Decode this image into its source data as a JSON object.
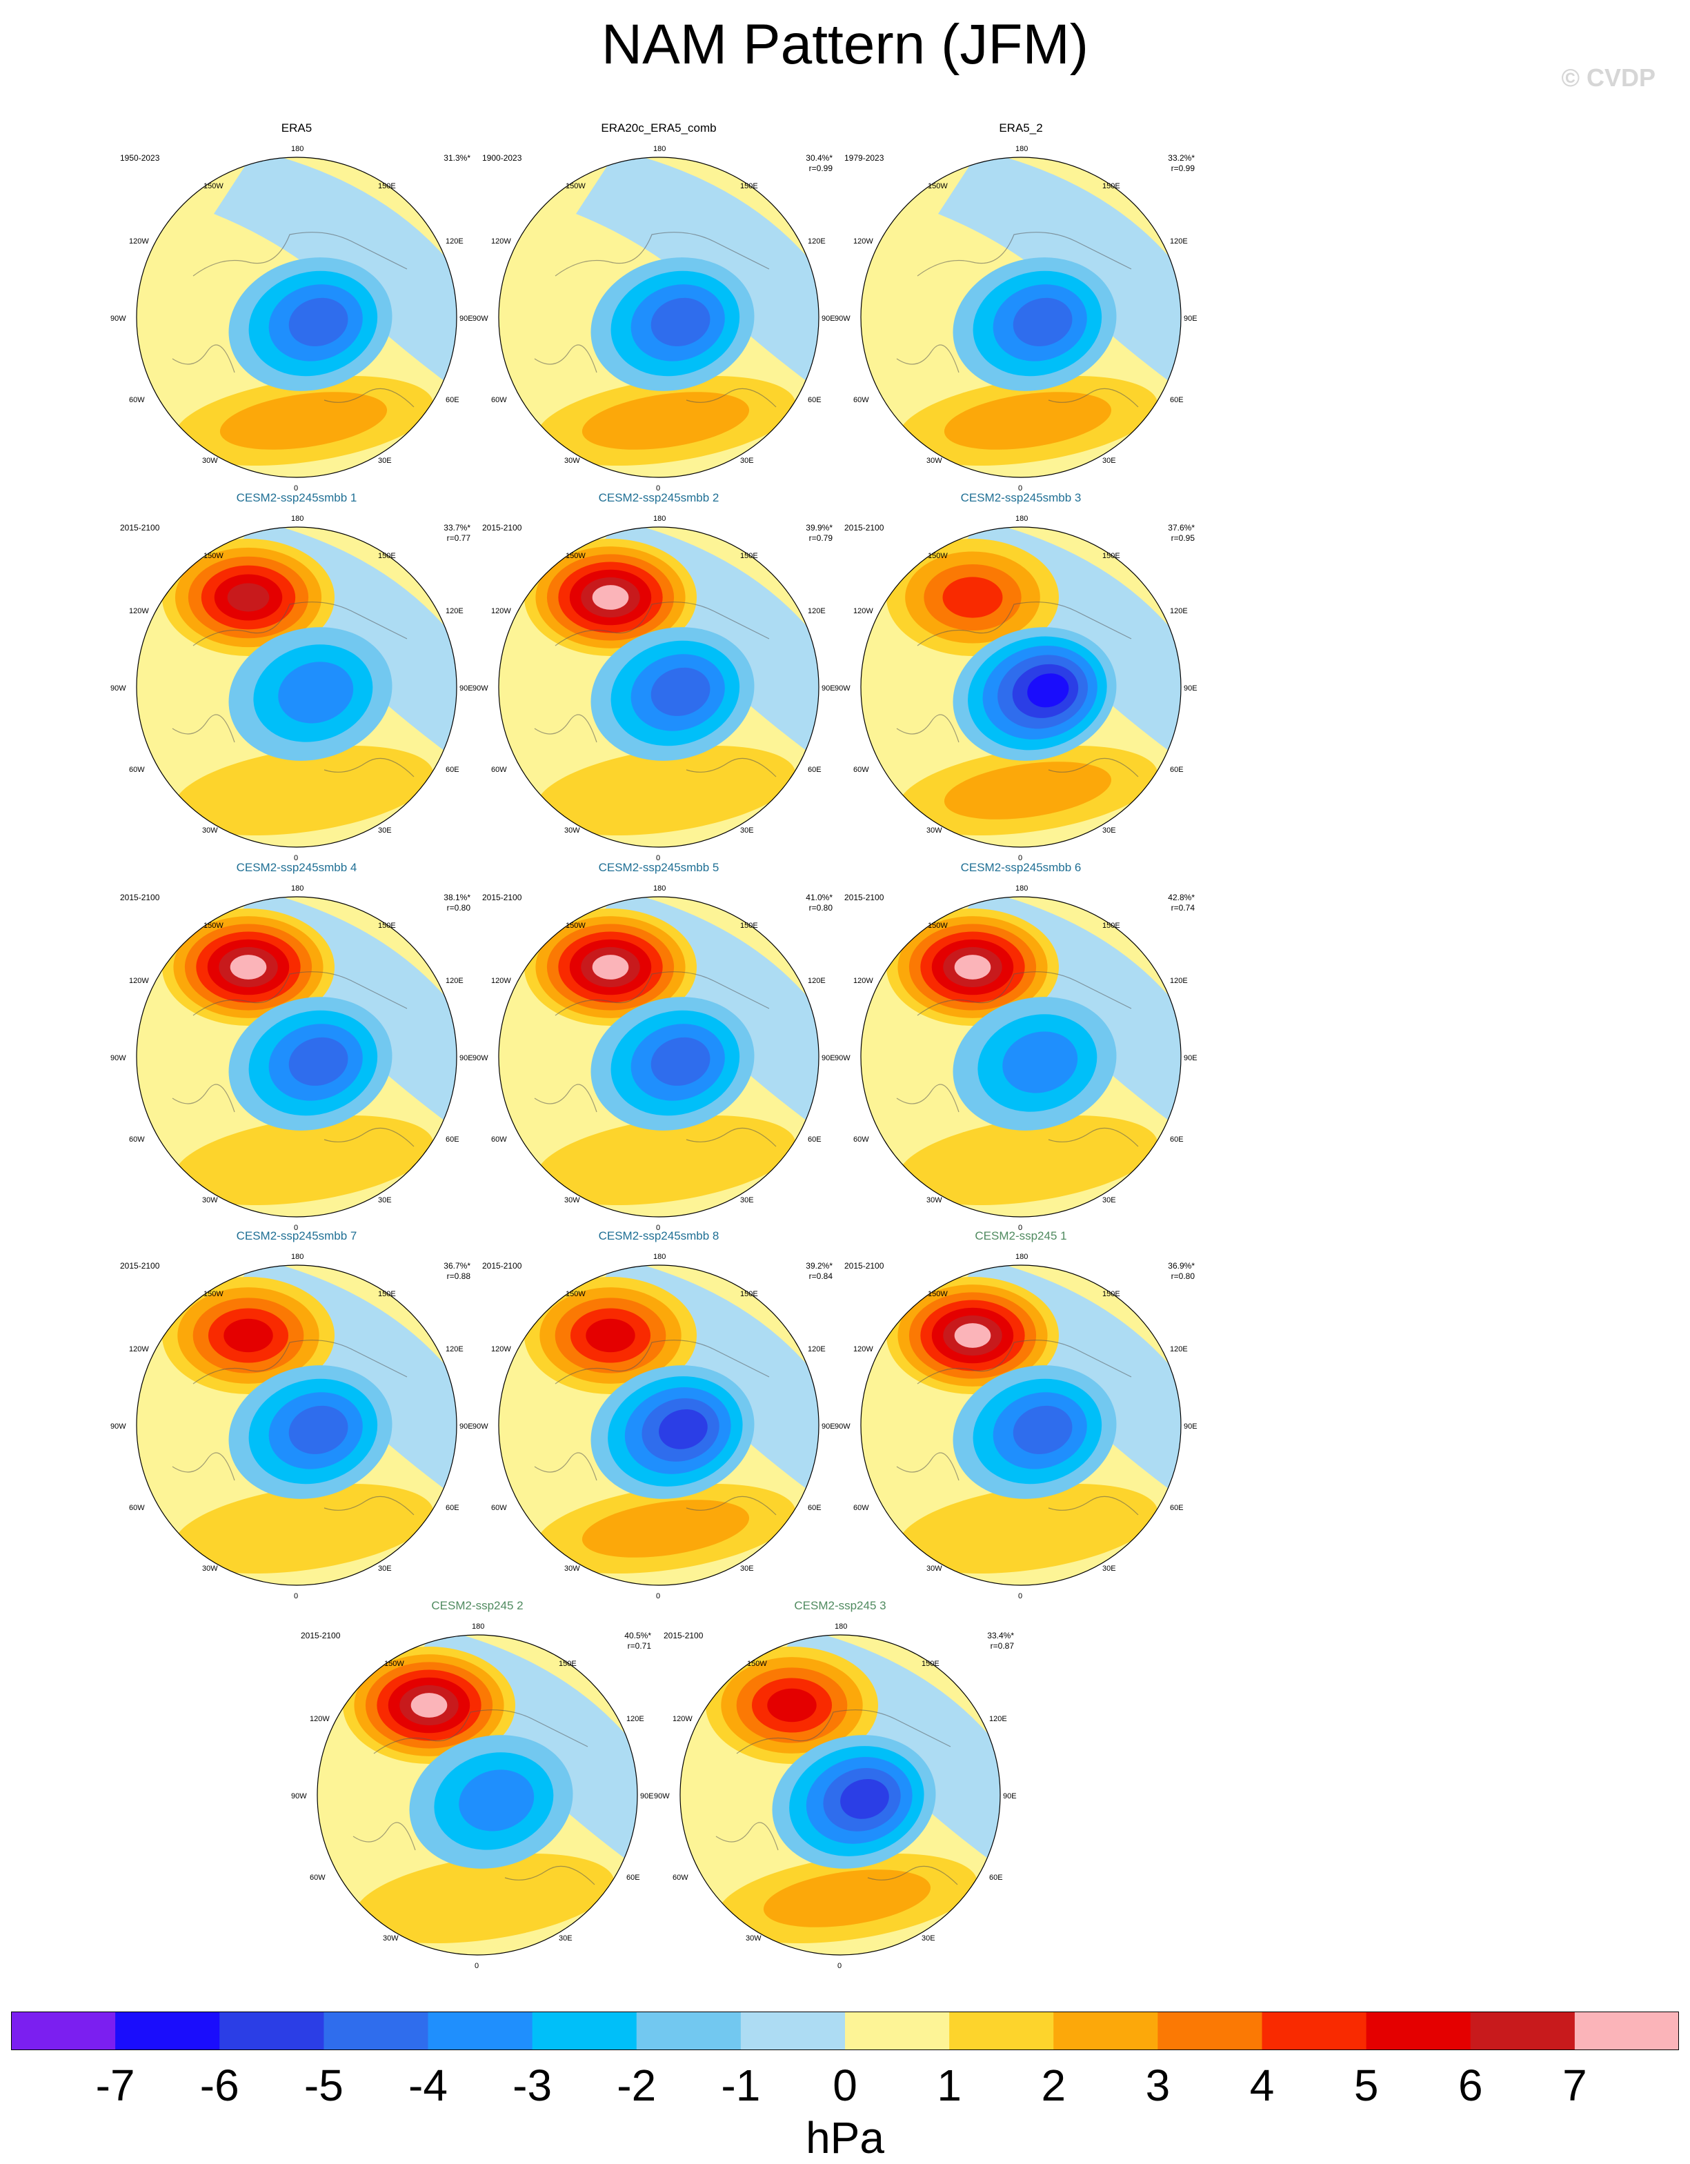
{
  "title": "NAM Pattern (JFM)",
  "watermark": "© CVDP",
  "chart_data": {
    "type": "heatmap",
    "description_kind": "polar stereographic maps of sea-level-pressure regression (NAM pattern)",
    "units": "hPa",
    "colorbar": {
      "tick_labels": [
        "-7",
        "-6",
        "-5",
        "-4",
        "-3",
        "-2",
        "-1",
        "0",
        "1",
        "2",
        "3",
        "4",
        "5",
        "6",
        "7"
      ],
      "colors": [
        "#7b1ff0",
        "#1a0dfc",
        "#2b3ee6",
        "#2f6ded",
        "#1f8ffd",
        "#00bff9",
        "#72c8f0",
        "#addcf3",
        "#fdf496",
        "#fdd42c",
        "#fca80a",
        "#fb7904",
        "#f92a00",
        "#e40000",
        "#c81a1c",
        "#fbb4b9"
      ]
    },
    "lon_labels": {
      "n": "180",
      "nnw": "150W",
      "nne": "150E",
      "wnw": "120W",
      "ene": "120E",
      "w": "90W",
      "e": "90E",
      "wsw": "60W",
      "ese": "60E",
      "ssw": "30W",
      "sse": "30E",
      "s": "0"
    },
    "panels": [
      {
        "title": "ERA5",
        "period": "1950-2023",
        "variance": "31.3%*",
        "r": "",
        "kind": "obs",
        "low": -4.2,
        "high": 0.6,
        "atl": 2.6
      },
      {
        "title": "ERA20c_ERA5_comb",
        "period": "1900-2023",
        "variance": "30.4%*",
        "r": "r=0.99",
        "kind": "obs",
        "low": -4.3,
        "high": 0.4,
        "atl": 2.6
      },
      {
        "title": "ERA5_2",
        "period": "1979-2023",
        "variance": "33.2%*",
        "r": "r=0.99",
        "kind": "obs",
        "low": -4.6,
        "high": 0.7,
        "atl": 2.7
      },
      {
        "title": "CESM2-ssp245smbb 1",
        "period": "2015-2100",
        "variance": "33.7%*",
        "r": "r=0.77",
        "kind": "smbb",
        "low": -3.6,
        "high": 6.2,
        "atl": 1.6
      },
      {
        "title": "CESM2-ssp245smbb 2",
        "period": "2015-2100",
        "variance": "39.9%*",
        "r": "r=0.79",
        "kind": "smbb",
        "low": -4.3,
        "high": 7.3,
        "atl": 1.7
      },
      {
        "title": "CESM2-ssp245smbb 3",
        "period": "2015-2100",
        "variance": "37.6%*",
        "r": "r=0.95",
        "kind": "smbb",
        "low": -6.3,
        "high": 4.5,
        "atl": 2.6
      },
      {
        "title": "CESM2-ssp245smbb 4",
        "period": "2015-2100",
        "variance": "38.1%*",
        "r": "r=0.80",
        "kind": "smbb",
        "low": -4.0,
        "high": 7.2,
        "atl": 1.6
      },
      {
        "title": "CESM2-ssp245smbb 5",
        "period": "2015-2100",
        "variance": "41.0%*",
        "r": "r=0.80",
        "kind": "smbb",
        "low": -4.1,
        "high": 7.1,
        "atl": 1.6
      },
      {
        "title": "CESM2-ssp245smbb 6",
        "period": "2015-2100",
        "variance": "42.8%*",
        "r": "r=0.74",
        "kind": "smbb",
        "low": -3.8,
        "high": 7.6,
        "atl": 1.7
      },
      {
        "title": "CESM2-ssp245smbb 7",
        "period": "2015-2100",
        "variance": "36.7%*",
        "r": "r=0.88",
        "kind": "smbb",
        "low": -4.2,
        "high": 5.6,
        "atl": 1.7
      },
      {
        "title": "CESM2-ssp245smbb 8",
        "period": "2015-2100",
        "variance": "39.2%*",
        "r": "r=0.84",
        "kind": "smbb",
        "low": -5.2,
        "high": 5.4,
        "atl": 2.3
      },
      {
        "title": "CESM2-ssp245 1",
        "period": "2015-2100",
        "variance": "36.9%*",
        "r": "r=0.80",
        "kind": "ssp",
        "low": -4.4,
        "high": 7.1,
        "atl": 1.9
      },
      {
        "title": "CESM2-ssp245 2",
        "period": "2015-2100",
        "variance": "40.5%*",
        "r": "r=0.71",
        "kind": "ssp",
        "low": -3.8,
        "high": 7.8,
        "atl": 1.6
      },
      {
        "title": "CESM2-ssp245 3",
        "period": "2015-2100",
        "variance": "33.4%*",
        "r": "r=0.87",
        "kind": "ssp",
        "low": -5.1,
        "high": 5.2,
        "atl": 2.1
      }
    ]
  }
}
